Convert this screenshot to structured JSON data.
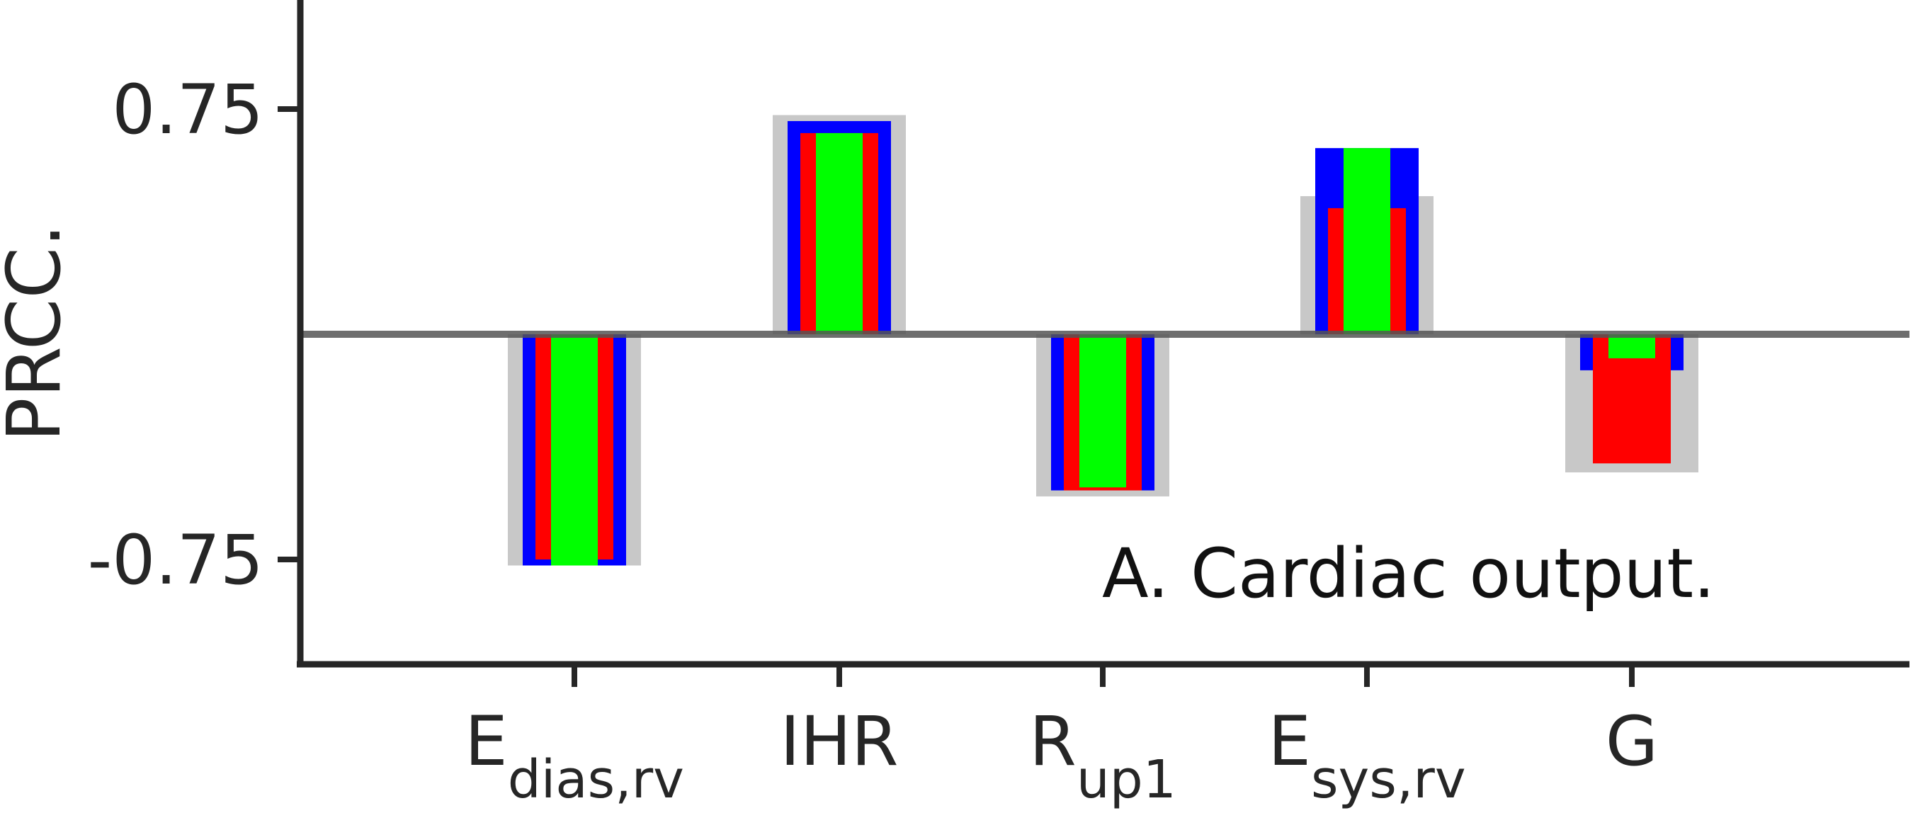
{
  "chart_data": {
    "type": "bar",
    "ylabel": "PRCC.",
    "yticks": [
      "0.75",
      "-0.75"
    ],
    "ytick_values": [
      0.75,
      -0.75
    ],
    "ylim": [
      -1.1,
      1.1
    ],
    "annotation": "A. Cardiac output.",
    "categories": [
      {
        "main": "E",
        "sub": "dias,rv"
      },
      {
        "main": "IHR",
        "sub": ""
      },
      {
        "main": "R",
        "sub": "up1"
      },
      {
        "main": "E",
        "sub": "sys,rv"
      },
      {
        "main": "G",
        "sub": ""
      }
    ],
    "series": [
      {
        "color": "#c8c8c8",
        "values": [
          -0.77,
          0.73,
          -0.54,
          0.46,
          -0.46
        ]
      },
      {
        "color": "#0000ff",
        "values": [
          -0.77,
          0.71,
          -0.52,
          0.62,
          -0.12
        ]
      },
      {
        "color": "#ff0000",
        "values": [
          -0.75,
          0.67,
          -0.52,
          0.42,
          -0.43
        ]
      },
      {
        "color": "#00ff00",
        "values": [
          -0.77,
          0.67,
          -0.51,
          0.62,
          -0.08
        ]
      }
    ],
    "zero_line": true,
    "grid": false
  }
}
